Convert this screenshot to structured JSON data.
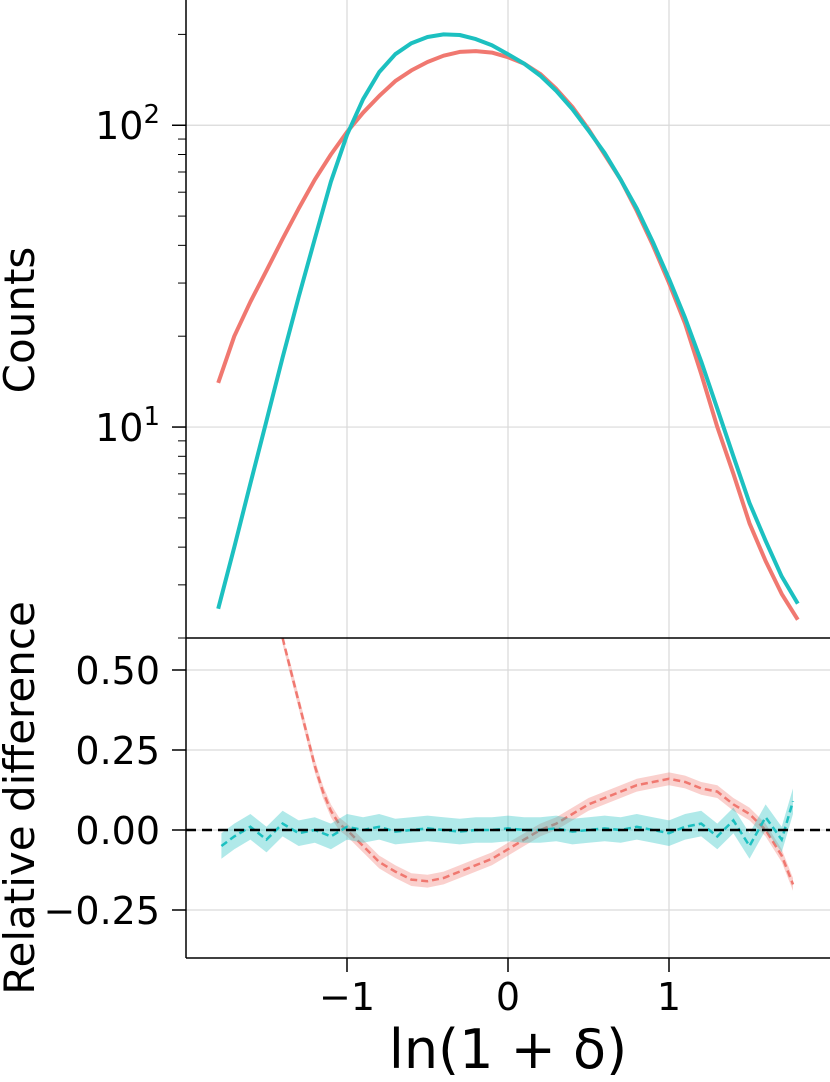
{
  "chart_data": [
    {
      "type": "line",
      "panel": "top",
      "ylabel": "Counts",
      "yscale": "log",
      "ylim": [
        2.0,
        260
      ],
      "xlim": [
        -2.0,
        2.0
      ],
      "xticks": [
        -1,
        0,
        1
      ],
      "yticks": [
        {
          "value": 10,
          "base": "10",
          "exp": "1"
        },
        {
          "value": 100,
          "base": "10",
          "exp": "2"
        }
      ],
      "grid": true,
      "series": [
        {
          "color": "#f07870",
          "x": [
            -1.8,
            -1.7,
            -1.6,
            -1.5,
            -1.4,
            -1.3,
            -1.2,
            -1.1,
            -1.0,
            -0.9,
            -0.8,
            -0.7,
            -0.6,
            -0.5,
            -0.4,
            -0.3,
            -0.2,
            -0.1,
            0.0,
            0.1,
            0.2,
            0.3,
            0.4,
            0.5,
            0.6,
            0.7,
            0.8,
            0.9,
            1.0,
            1.1,
            1.2,
            1.3,
            1.4,
            1.5,
            1.6,
            1.7,
            1.8
          ],
          "y": [
            14,
            20,
            26,
            33,
            42,
            53,
            66,
            80,
            95,
            110,
            125,
            140,
            152,
            162,
            170,
            175,
            176,
            174,
            168,
            160,
            148,
            132,
            115,
            97,
            80,
            66,
            52,
            40,
            30,
            22,
            15,
            10,
            7,
            4.8,
            3.6,
            2.8,
            2.3
          ]
        },
        {
          "color": "#1cc0c0",
          "x": [
            -1.8,
            -1.7,
            -1.6,
            -1.5,
            -1.4,
            -1.3,
            -1.2,
            -1.1,
            -1.0,
            -0.9,
            -0.8,
            -0.7,
            -0.6,
            -0.5,
            -0.4,
            -0.3,
            -0.2,
            -0.1,
            0.0,
            0.1,
            0.2,
            0.3,
            0.4,
            0.5,
            0.6,
            0.7,
            0.8,
            0.9,
            1.0,
            1.1,
            1.2,
            1.3,
            1.4,
            1.5,
            1.6,
            1.7,
            1.8
          ],
          "y": [
            2.5,
            4,
            6.5,
            10.5,
            17,
            27,
            42,
            65,
            93,
            122,
            150,
            172,
            187,
            196,
            200,
            199,
            193,
            184,
            172,
            160,
            146,
            130,
            113,
            96,
            81,
            66,
            53,
            41,
            31,
            23,
            16.5,
            11.5,
            8,
            5.6,
            4.2,
            3.2,
            2.6
          ]
        }
      ]
    },
    {
      "type": "line",
      "panel": "bottom",
      "xlabel": "ln(1 + δ)",
      "ylabel": "Relative difference",
      "xlim": [
        -2.0,
        2.0
      ],
      "ylim": [
        -0.4,
        0.6
      ],
      "xticks": [
        {
          "value": -1,
          "label": "−1"
        },
        {
          "value": 0,
          "label": "0"
        },
        {
          "value": 1,
          "label": "1"
        }
      ],
      "yticks": [
        {
          "value": 0.5,
          "label": "0.50"
        },
        {
          "value": 0.25,
          "label": "0.25"
        },
        {
          "value": 0.0,
          "label": "0.00"
        },
        {
          "value": -0.25,
          "label": "−0.25"
        }
      ],
      "reference_line": 0.0,
      "grid": true,
      "series": [
        {
          "color": "#f07870",
          "style": "dashed",
          "x": [
            -1.4,
            -1.35,
            -1.3,
            -1.25,
            -1.2,
            -1.15,
            -1.1,
            -1.05,
            -1.0,
            -0.9,
            -0.8,
            -0.7,
            -0.6,
            -0.5,
            -0.4,
            -0.3,
            -0.2,
            -0.1,
            0.0,
            0.1,
            0.2,
            0.3,
            0.4,
            0.5,
            0.6,
            0.7,
            0.8,
            0.9,
            1.0,
            1.1,
            1.2,
            1.3,
            1.4,
            1.5,
            1.6,
            1.7,
            1.77
          ],
          "y": [
            0.6,
            0.5,
            0.4,
            0.3,
            0.2,
            0.12,
            0.06,
            0.02,
            0.0,
            -0.05,
            -0.1,
            -0.13,
            -0.155,
            -0.16,
            -0.15,
            -0.13,
            -0.11,
            -0.09,
            -0.06,
            -0.03,
            0.0,
            0.02,
            0.05,
            0.08,
            0.1,
            0.12,
            0.14,
            0.15,
            0.16,
            0.15,
            0.13,
            0.12,
            0.08,
            0.05,
            0.0,
            -0.08,
            -0.17
          ],
          "band": 0.02
        },
        {
          "color": "#1cc0c0",
          "style": "dashed",
          "x": [
            -1.78,
            -1.7,
            -1.6,
            -1.5,
            -1.4,
            -1.3,
            -1.2,
            -1.1,
            -1.0,
            -0.9,
            -0.8,
            -0.7,
            -0.6,
            -0.5,
            -0.4,
            -0.3,
            -0.2,
            -0.1,
            0.0,
            0.1,
            0.2,
            0.3,
            0.4,
            0.5,
            0.6,
            0.7,
            0.8,
            0.9,
            1.0,
            1.1,
            1.2,
            1.3,
            1.4,
            1.5,
            1.6,
            1.7,
            1.77
          ],
          "y": [
            -0.05,
            -0.02,
            0.01,
            -0.03,
            0.02,
            -0.01,
            0.0,
            -0.02,
            0.01,
            0.0,
            0.01,
            -0.005,
            0.0,
            0.005,
            0.0,
            -0.005,
            0.0,
            0.0,
            0.005,
            0.0,
            0.0,
            0.005,
            -0.005,
            0.0,
            0.005,
            0.0,
            0.01,
            0.0,
            -0.01,
            0.01,
            0.02,
            -0.02,
            0.03,
            -0.05,
            0.04,
            -0.03,
            0.09
          ],
          "band": 0.04
        }
      ]
    }
  ]
}
